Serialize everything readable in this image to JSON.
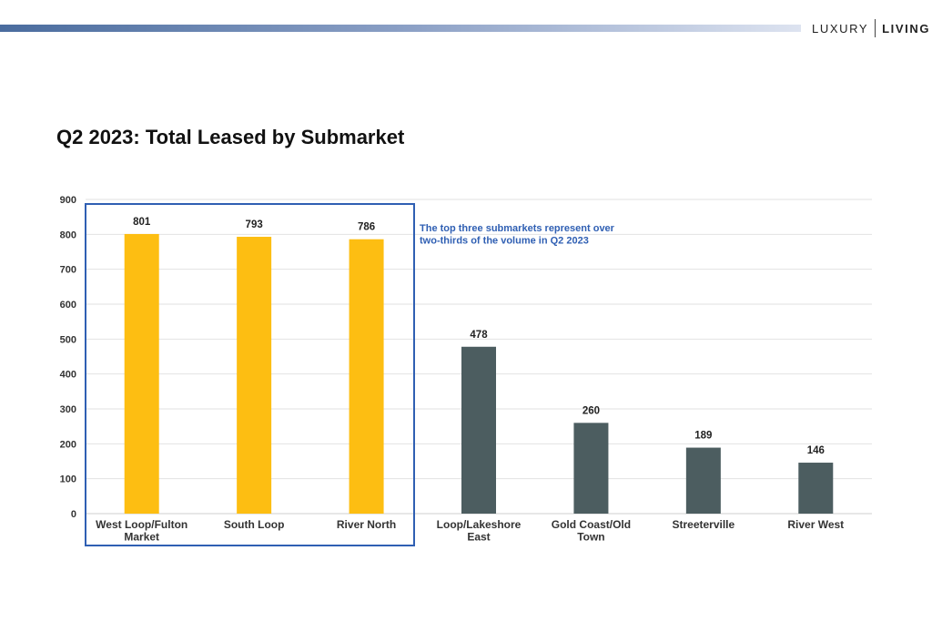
{
  "brand": {
    "word1": "LUXURY",
    "word2": "LIVING"
  },
  "colors": {
    "highlight_bar": "#fdbe12",
    "other_bar": "#4c5d60",
    "annotation": "#2f5fb3",
    "box_border": "#2f5fb3",
    "grid": "#e2e2e2"
  },
  "chart_data": {
    "type": "bar",
    "title": "Q2 2023: Total Leased by Submarket",
    "xlabel": "",
    "ylabel": "",
    "ylim": [
      0,
      900
    ],
    "yticks": [
      0,
      100,
      200,
      300,
      400,
      500,
      600,
      700,
      800,
      900
    ],
    "grid": true,
    "categories": [
      [
        "West Loop/Fulton",
        "Market"
      ],
      [
        "South Loop"
      ],
      [
        "River North"
      ],
      [
        "Loop/Lakeshore",
        "East"
      ],
      [
        "Gold Coast/Old",
        "Town"
      ],
      [
        "Streeterville"
      ],
      [
        "River West"
      ]
    ],
    "values": [
      801,
      793,
      786,
      478,
      260,
      189,
      146
    ],
    "highlighted": [
      true,
      true,
      true,
      false,
      false,
      false,
      false
    ],
    "annotation": {
      "lines": [
        "The top three submarkets represent over",
        "two-thirds of the volume in Q2 2023"
      ]
    }
  }
}
